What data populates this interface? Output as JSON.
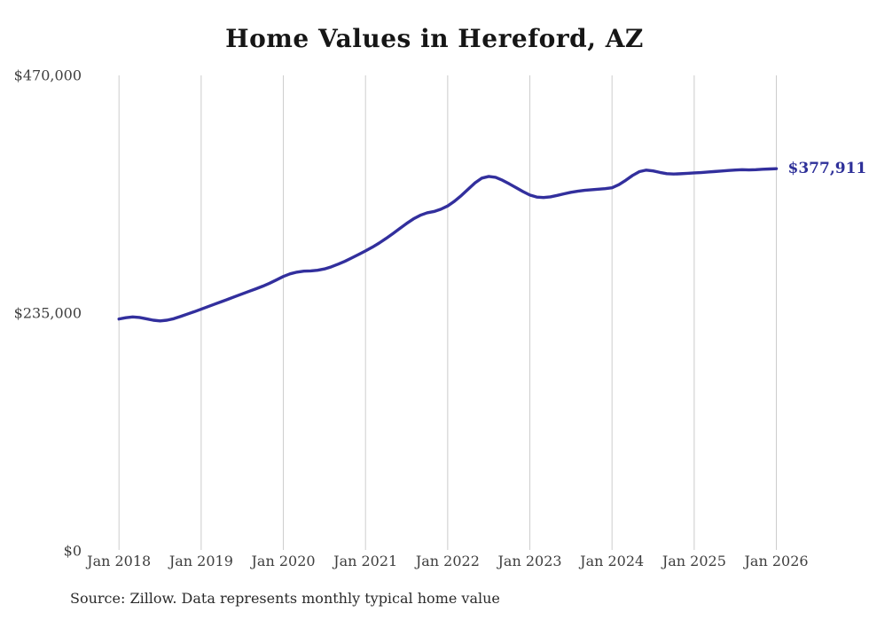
{
  "chart_data": {
    "type": "line",
    "title": "Home Values in Hereford, AZ",
    "source_note": "Source: Zillow. Data represents monthly typical home value",
    "end_label": "$377,911",
    "line_color": "#322f9d",
    "grid_color": "#cccccc",
    "grid": "vertical-only",
    "legend": "none",
    "ylim": [
      0,
      470000
    ],
    "y_ticks": [
      {
        "label": "$0",
        "value": 0
      },
      {
        "label": "$235,000",
        "value": 235000
      },
      {
        "label": "$470,000",
        "value": 470000
      }
    ],
    "x_tick_labels": [
      "Jan 2018",
      "Jan 2019",
      "Jan 2020",
      "Jan 2021",
      "Jan 2022",
      "Jan 2023",
      "Jan 2024",
      "Jan 2025",
      "Jan 2026"
    ],
    "series": [
      {
        "name": "Monthly typical home value",
        "x": [
          "2018-01",
          "2018-02",
          "2018-03",
          "2018-04",
          "2018-05",
          "2018-06",
          "2018-07",
          "2018-08",
          "2018-09",
          "2018-10",
          "2018-11",
          "2018-12",
          "2019-01",
          "2019-02",
          "2019-03",
          "2019-04",
          "2019-05",
          "2019-06",
          "2019-07",
          "2019-08",
          "2019-09",
          "2019-10",
          "2019-11",
          "2019-12",
          "2020-01",
          "2020-02",
          "2020-03",
          "2020-04",
          "2020-05",
          "2020-06",
          "2020-07",
          "2020-08",
          "2020-09",
          "2020-10",
          "2020-11",
          "2020-12",
          "2021-01",
          "2021-02",
          "2021-03",
          "2021-04",
          "2021-05",
          "2021-06",
          "2021-07",
          "2021-08",
          "2021-09",
          "2021-10",
          "2021-11",
          "2021-12",
          "2022-01",
          "2022-02",
          "2022-03",
          "2022-04",
          "2022-05",
          "2022-06",
          "2022-07",
          "2022-08",
          "2022-09",
          "2022-10",
          "2022-11",
          "2022-12",
          "2023-01",
          "2023-02",
          "2023-03",
          "2023-04",
          "2023-05",
          "2023-06",
          "2023-07",
          "2023-08",
          "2023-09",
          "2023-10",
          "2023-11",
          "2023-12",
          "2024-01",
          "2024-02",
          "2024-03",
          "2024-04",
          "2024-05",
          "2024-06",
          "2024-07",
          "2024-08",
          "2024-09",
          "2024-10",
          "2024-11",
          "2024-12",
          "2025-01",
          "2025-02",
          "2025-03",
          "2025-04",
          "2025-05",
          "2025-06",
          "2025-07",
          "2025-08",
          "2025-09",
          "2025-10",
          "2025-11",
          "2025-12",
          "2026-01"
        ],
        "values": [
          229500,
          230800,
          231500,
          231000,
          229700,
          228300,
          227600,
          228300,
          229800,
          232000,
          234400,
          236700,
          239200,
          241700,
          244200,
          246700,
          249200,
          251800,
          254300,
          256800,
          259300,
          261900,
          264800,
          268100,
          271500,
          274100,
          275800,
          276700,
          277000,
          277600,
          278900,
          281000,
          283600,
          286500,
          289800,
          293200,
          296700,
          300400,
          304500,
          309000,
          313800,
          318800,
          323800,
          328300,
          331900,
          334300,
          335600,
          337900,
          341100,
          345800,
          351400,
          357700,
          363900,
          368600,
          370200,
          369300,
          366500,
          362900,
          359100,
          355300,
          351900,
          349900,
          349400,
          350100,
          351500,
          353100,
          354600,
          355700,
          356500,
          357100,
          357600,
          358200,
          359100,
          362100,
          366400,
          371200,
          375000,
          376500,
          375700,
          374200,
          373000,
          372600,
          372900,
          373300,
          373700,
          374100,
          374600,
          375100,
          375600,
          376100,
          376600,
          376900,
          376700,
          376900,
          377300,
          377600,
          377911
        ]
      }
    ]
  }
}
